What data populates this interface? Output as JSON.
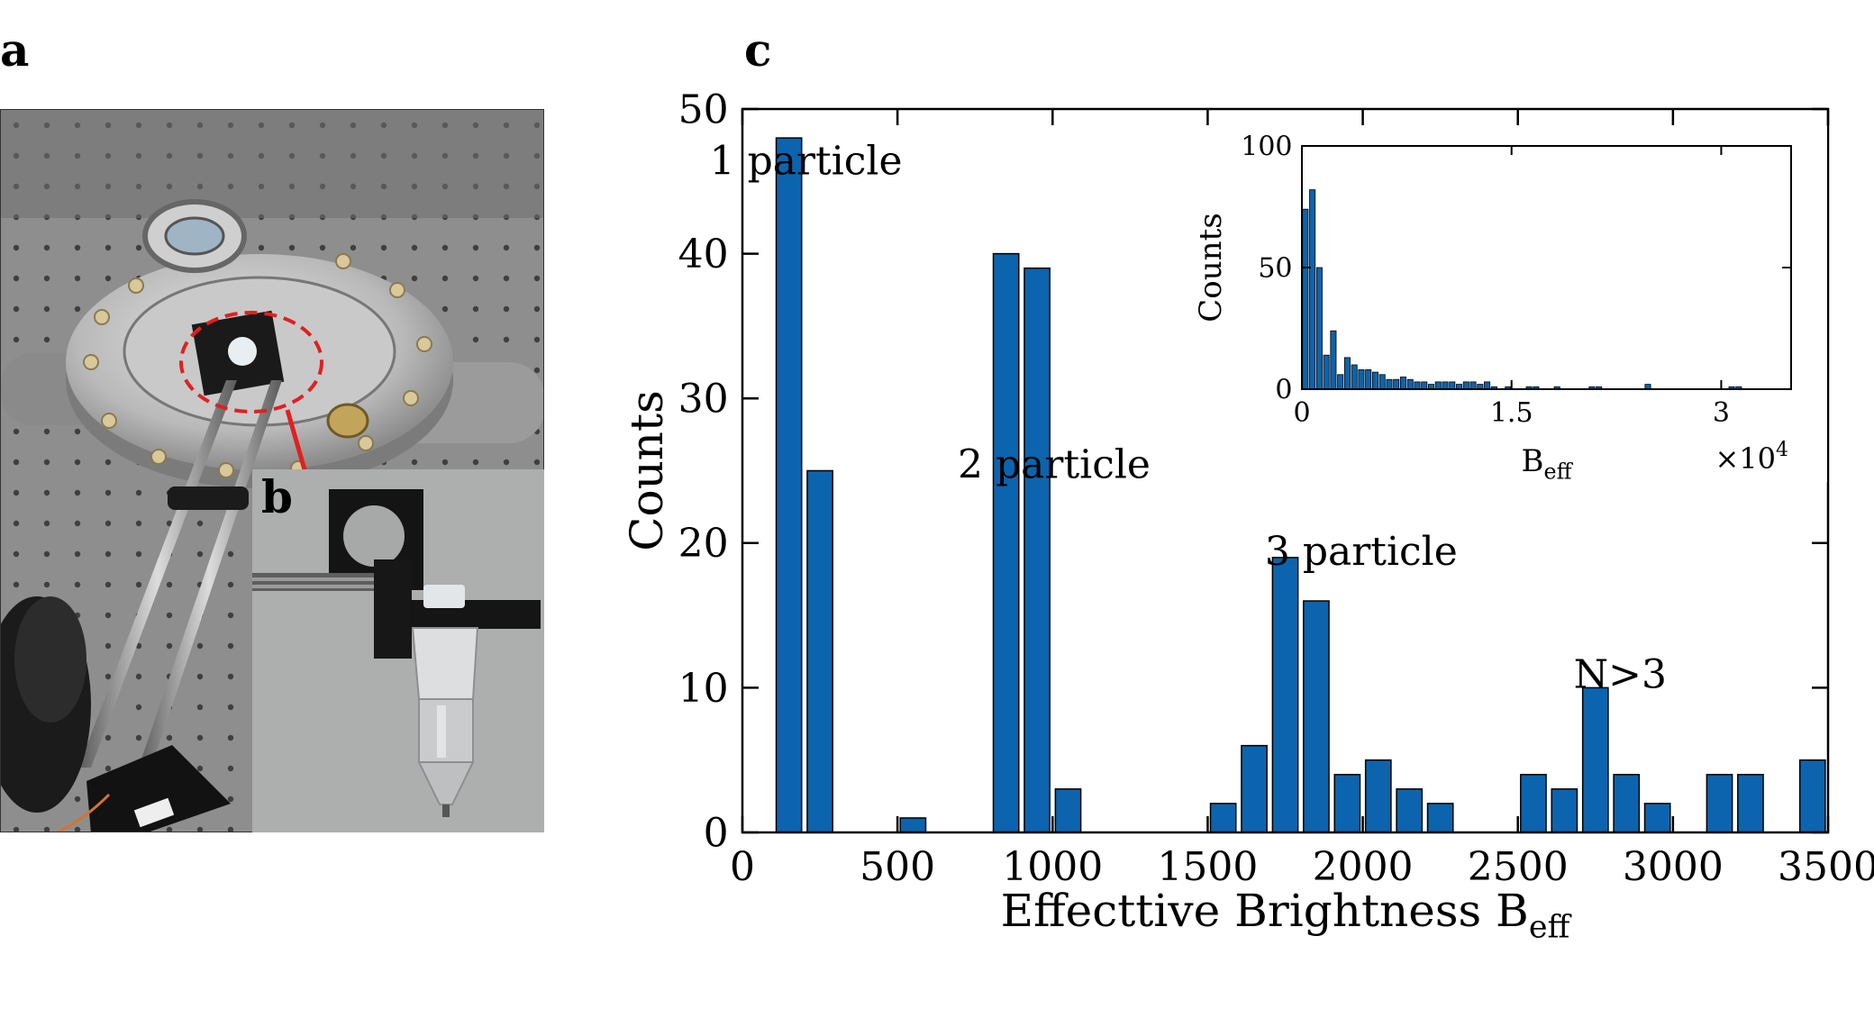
{
  "panels": {
    "a": "a",
    "b": "b",
    "c": "c"
  },
  "chart_data": [
    {
      "type": "bar",
      "title": "",
      "xlabel": "Effecttive Brightness B",
      "xlabel_subscript": "eff",
      "ylabel": "Counts",
      "xlim": [
        0,
        3500
      ],
      "ylim": [
        0,
        50
      ],
      "xticks": [
        0,
        500,
        1000,
        1500,
        2000,
        2500,
        3000,
        3500
      ],
      "yticks": [
        0,
        10,
        20,
        30,
        40,
        50
      ],
      "bin_width": 100,
      "x": [
        150,
        250,
        550,
        850,
        950,
        1050,
        1550,
        1650,
        1750,
        1850,
        1950,
        2050,
        2150,
        2250,
        2550,
        2650,
        2750,
        2850,
        2950,
        3150,
        3250,
        3450
      ],
      "values": [
        48,
        25,
        1,
        40,
        39,
        3,
        2,
        6,
        19,
        16,
        4,
        5,
        3,
        2,
        4,
        3,
        10,
        4,
        2,
        4,
        4,
        5
      ],
      "bar_color": "#0b64ad",
      "annotations": [
        {
          "text": "1 particle",
          "x": 205,
          "y": 45.5
        },
        {
          "text": "2 particle",
          "x": 1005,
          "y": 24.5
        },
        {
          "text": "3 particle",
          "x": 1995,
          "y": 18.5
        },
        {
          "text": "N>3",
          "x": 2830,
          "y": 10
        }
      ]
    },
    {
      "type": "bar",
      "title": "",
      "xlabel": "B",
      "xlabel_subscript": "eff",
      "ylabel": "Counts",
      "xlim": [
        0,
        35000
      ],
      "ylim": [
        0,
        100
      ],
      "xtick_values": [
        0,
        15000,
        30000
      ],
      "xtick_labels": [
        "0",
        "1.5",
        "3"
      ],
      "yticks": [
        0,
        50,
        100
      ],
      "x_multiplier": "×10",
      "x_multiplier_exp": "4",
      "bin_width": 500,
      "x": [
        250,
        750,
        1250,
        1750,
        2250,
        2750,
        3250,
        3750,
        4250,
        4750,
        5250,
        5750,
        6250,
        6750,
        7250,
        7750,
        8250,
        8750,
        9250,
        9750,
        10250,
        10750,
        11250,
        11750,
        12250,
        12750,
        13250,
        13750,
        14750,
        16250,
        16750,
        18250,
        20750,
        21250,
        24750,
        30750,
        31250
      ],
      "values": [
        74,
        82,
        50,
        14,
        24,
        6,
        13,
        10,
        8,
        8,
        7,
        6,
        4,
        4,
        5,
        4,
        3,
        3,
        2,
        3,
        3,
        3,
        2,
        3,
        3,
        2,
        3,
        1,
        1,
        1,
        1,
        1,
        1,
        1,
        2,
        1,
        1
      ],
      "bar_color": "#0b64ad"
    }
  ]
}
